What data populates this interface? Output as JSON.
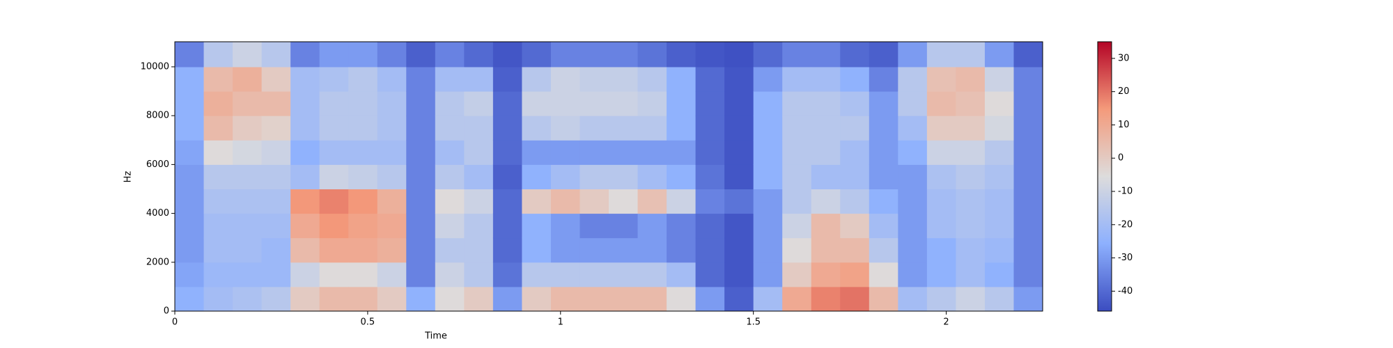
{
  "chart_data": {
    "type": "heatmap",
    "xlabel": "Time",
    "ylabel": "Hz",
    "xlim": [
      0,
      2.25
    ],
    "ylim": [
      0,
      11025
    ],
    "xticks": [
      0,
      0.5,
      1,
      1.5,
      2
    ],
    "yticks": [
      0,
      2000,
      4000,
      6000,
      8000,
      10000
    ],
    "x_bins": [
      0,
      0.075,
      0.15,
      0.225,
      0.3,
      0.375,
      0.45,
      0.525,
      0.6,
      0.675,
      0.75,
      0.825,
      0.9,
      0.975,
      1.05,
      1.125,
      1.2,
      1.275,
      1.35,
      1.425,
      1.5,
      1.575,
      1.65,
      1.725,
      1.8,
      1.875,
      1.95,
      2.025,
      2.1,
      2.175,
      2.25
    ],
    "y_bins": [
      0,
      1000,
      2000,
      3000,
      4000,
      5000,
      6000,
      7000,
      8000,
      9000,
      10000,
      11025
    ],
    "colors": [
      "#3b4cc0",
      "#8db0fe",
      "#dddcdc",
      "#f49a7b",
      "#b40426"
    ],
    "colorbar": {
      "lim": [
        -46,
        35
      ],
      "ticks": [
        -40,
        -30,
        -20,
        -10,
        0,
        10,
        20,
        30
      ]
    },
    "values": [
      [
        -25,
        -28,
        -30,
        -30,
        -30,
        -30,
        -28,
        -25,
        -25,
        -25,
        -35
      ],
      [
        -20,
        -22,
        -20,
        -20,
        -18,
        -15,
        -5,
        5,
        8,
        5,
        -15
      ],
      [
        -18,
        -22,
        -20,
        -20,
        -18,
        -15,
        -8,
        0,
        5,
        8,
        -10
      ],
      [
        -15,
        -22,
        -22,
        -20,
        -18,
        -15,
        -10,
        -2,
        5,
        0,
        -15
      ],
      [
        0,
        -10,
        5,
        10,
        15,
        -20,
        -25,
        -20,
        -20,
        -20,
        -35
      ],
      [
        5,
        -5,
        10,
        15,
        18,
        -10,
        -20,
        -15,
        -15,
        -18,
        -30
      ],
      [
        5,
        -5,
        10,
        12,
        15,
        -12,
        -20,
        -15,
        -15,
        -15,
        -30
      ],
      [
        0,
        -10,
        8,
        10,
        8,
        -15,
        -20,
        -18,
        -18,
        -20,
        -35
      ],
      [
        -25,
        -35,
        -35,
        -35,
        -35,
        -35,
        -35,
        -35,
        -35,
        -35,
        -42
      ],
      [
        -5,
        -10,
        -15,
        -10,
        -5,
        -15,
        -20,
        -15,
        -15,
        -20,
        -35
      ],
      [
        0,
        -15,
        -15,
        -15,
        -10,
        -20,
        -15,
        -15,
        -12,
        -20,
        -40
      ],
      [
        -30,
        -38,
        -40,
        -40,
        -40,
        -42,
        -40,
        -40,
        -40,
        -42,
        -44
      ],
      [
        0,
        -15,
        -25,
        -25,
        0,
        -25,
        -30,
        -15,
        -10,
        -15,
        -40
      ],
      [
        5,
        -15,
        -30,
        -30,
        5,
        -20,
        -30,
        -12,
        -10,
        -10,
        -35
      ],
      [
        5,
        -15,
        -30,
        -35,
        0,
        -15,
        -30,
        -15,
        -10,
        -12,
        -35
      ],
      [
        5,
        -15,
        -30,
        -35,
        -5,
        -15,
        -30,
        -15,
        -10,
        -12,
        -35
      ],
      [
        5,
        -15,
        -30,
        -30,
        3,
        -20,
        -30,
        -15,
        -12,
        -15,
        -38
      ],
      [
        -5,
        -20,
        -35,
        -35,
        -10,
        -25,
        -30,
        -25,
        -25,
        -25,
        -42
      ],
      [
        -30,
        -40,
        -40,
        -40,
        -35,
        -38,
        -40,
        -40,
        -40,
        -40,
        -44
      ],
      [
        -42,
        -44,
        -44,
        -44,
        -38,
        -44,
        -44,
        -44,
        -44,
        -44,
        -45
      ],
      [
        -20,
        -30,
        -30,
        -30,
        -30,
        -25,
        -25,
        -25,
        -25,
        -30,
        -40
      ],
      [
        10,
        0,
        -5,
        -10,
        -15,
        -15,
        -15,
        -15,
        -15,
        -20,
        -35
      ],
      [
        18,
        10,
        5,
        5,
        -10,
        -20,
        -15,
        -15,
        -15,
        -20,
        -35
      ],
      [
        20,
        12,
        5,
        0,
        -15,
        -20,
        -20,
        -15,
        -18,
        -25,
        -40
      ],
      [
        5,
        -5,
        -15,
        -20,
        -25,
        -30,
        -30,
        -30,
        -30,
        -35,
        -42
      ],
      [
        -20,
        -30,
        -30,
        -30,
        -30,
        -30,
        -25,
        -20,
        -15,
        -15,
        -30
      ],
      [
        -15,
        -25,
        -25,
        -20,
        -20,
        -18,
        -10,
        0,
        5,
        3,
        -15
      ],
      [
        -10,
        -20,
        -20,
        -18,
        -18,
        -15,
        -10,
        0,
        3,
        5,
        -15
      ],
      [
        -15,
        -25,
        -22,
        -20,
        -20,
        -18,
        -15,
        -8,
        -5,
        -10,
        -30
      ],
      [
        -30,
        -35,
        -35,
        -35,
        -35,
        -35,
        -35,
        -35,
        -35,
        -35,
        -42
      ]
    ]
  }
}
